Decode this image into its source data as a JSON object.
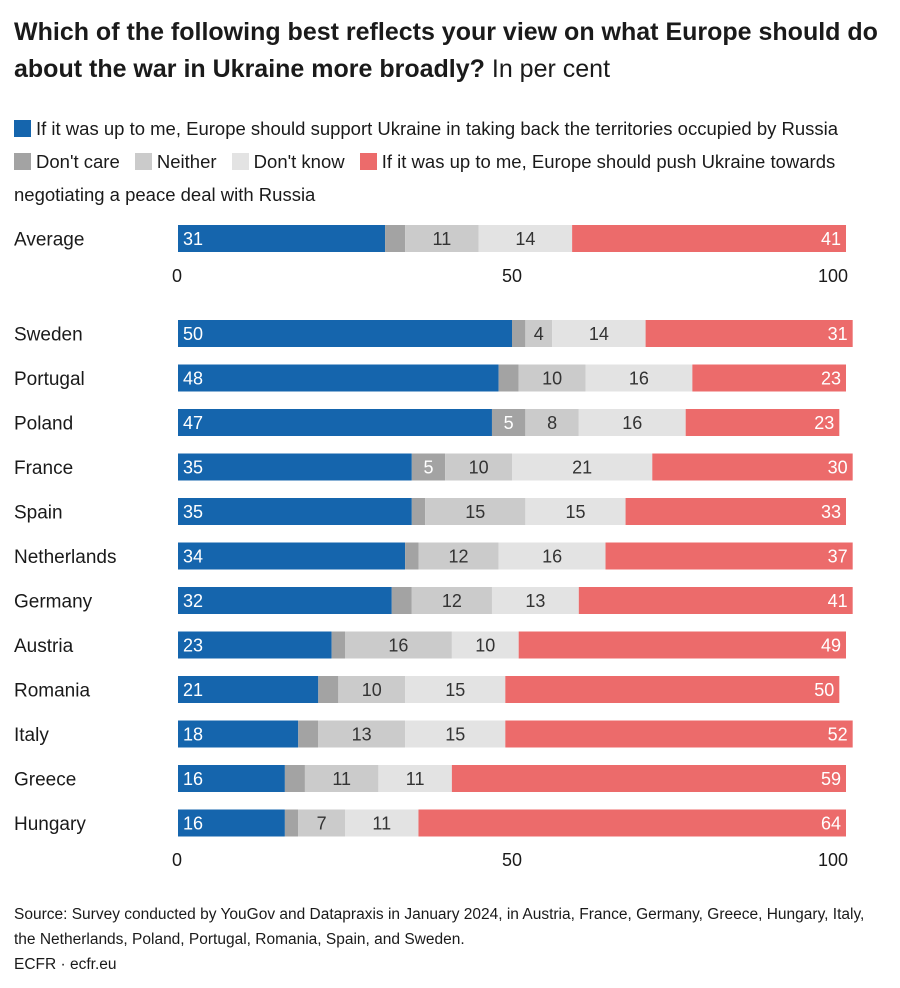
{
  "title": "Which of the following best reflects your view on what Europe should do about the war in Ukraine more broadly?",
  "subtitle": "In per cent",
  "source": "Source: Survey conducted by YouGov and Datapraxis in January 2024, in Austria, France, Germany, Greece, Hungary, Italy, the Netherlands, Poland, Portugal, Romania, Spain, and Sweden.",
  "credit": "ECFR · ecfr.eu",
  "chart_data": {
    "type": "bar",
    "orientation": "horizontal-stacked",
    "xlim": [
      0,
      100
    ],
    "xticks": [
      "0",
      "50",
      "100"
    ],
    "legend_position": "top",
    "series": [
      {
        "name": "If it was up to me, Europe should support Ukraine in taking back the territories occupied by Russia",
        "color": "#1565ad",
        "text_color": "#ffffff"
      },
      {
        "name": "Don't care",
        "color": "#a3a3a3",
        "text_color": "#ffffff"
      },
      {
        "name": "Neither",
        "color": "#cbcbcb",
        "text_color": "#333333"
      },
      {
        "name": "Don't know",
        "color": "#e3e3e3",
        "text_color": "#333333"
      },
      {
        "name": "If it was up to me, Europe should push Ukraine towards negotiating a peace deal with Russia",
        "color": "#ec6b6b",
        "text_color": "#ffffff"
      }
    ],
    "groups": [
      {
        "name": "average",
        "categories": [
          "Average"
        ],
        "values": [
          [
            31,
            3,
            11,
            14,
            41
          ]
        ],
        "labels": [
          [
            "31",
            "",
            "11",
            "14",
            "41"
          ]
        ]
      },
      {
        "name": "countries",
        "categories": [
          "Sweden",
          "Portugal",
          "Poland",
          "France",
          "Spain",
          "Netherlands",
          "Germany",
          "Austria",
          "Romania",
          "Italy",
          "Greece",
          "Hungary"
        ],
        "values": [
          [
            50,
            2,
            4,
            14,
            31
          ],
          [
            48,
            3,
            10,
            16,
            23
          ],
          [
            47,
            5,
            8,
            16,
            23
          ],
          [
            35,
            5,
            10,
            21,
            30
          ],
          [
            35,
            2,
            15,
            15,
            33
          ],
          [
            34,
            2,
            12,
            16,
            37
          ],
          [
            32,
            3,
            12,
            13,
            41
          ],
          [
            23,
            2,
            16,
            10,
            49
          ],
          [
            21,
            3,
            10,
            15,
            50
          ],
          [
            18,
            3,
            13,
            15,
            52
          ],
          [
            16,
            3,
            11,
            11,
            59
          ],
          [
            16,
            2,
            7,
            11,
            64
          ]
        ],
        "labels": [
          [
            "50",
            "",
            "4",
            "14",
            "31"
          ],
          [
            "48",
            "",
            "10",
            "16",
            "23"
          ],
          [
            "47",
            "5",
            "8",
            "16",
            "23"
          ],
          [
            "35",
            "5",
            "10",
            "21",
            "30"
          ],
          [
            "35",
            "",
            "15",
            "15",
            "33"
          ],
          [
            "34",
            "",
            "12",
            "16",
            "37"
          ],
          [
            "32",
            "",
            "12",
            "13",
            "41"
          ],
          [
            "23",
            "",
            "16",
            "10",
            "49"
          ],
          [
            "21",
            "",
            "10",
            "15",
            "50"
          ],
          [
            "18",
            "",
            "13",
            "15",
            "52"
          ],
          [
            "16",
            "",
            "11",
            "11",
            "59"
          ],
          [
            "16",
            "",
            "7",
            "11",
            "64"
          ]
        ]
      }
    ]
  }
}
